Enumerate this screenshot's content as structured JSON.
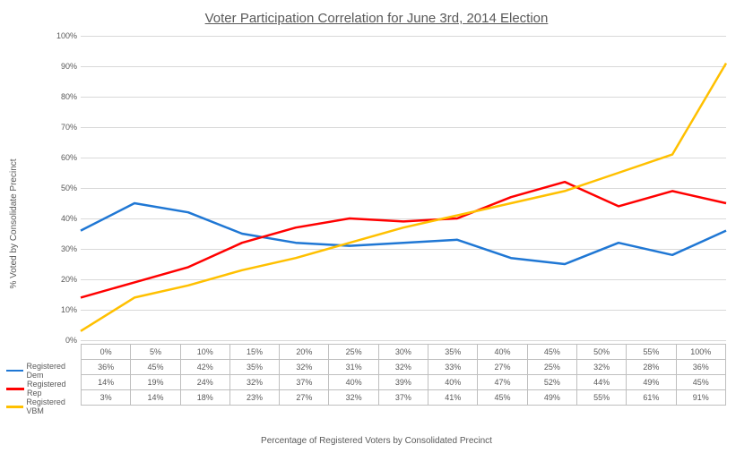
{
  "chart": {
    "type": "line",
    "title": "Voter Participation Correlation for June 3rd, 2014 Election",
    "title_fontsize": 15,
    "title_color": "#595959",
    "x_axis_label": "Percentage of Registered Voters by Consolidated Precinct",
    "y_axis_label": "% Voted by Consolidate Precinct",
    "label_fontsize": 10,
    "label_color": "#595959",
    "background_color": "#ffffff",
    "grid_color": "#d9d9d9",
    "ylim": [
      0,
      100
    ],
    "ytick_step": 10,
    "y_ticks": [
      "0%",
      "10%",
      "20%",
      "30%",
      "40%",
      "50%",
      "60%",
      "70%",
      "80%",
      "90%",
      "100%"
    ],
    "x_ticks": [
      "0%",
      "5%",
      "10%",
      "15%",
      "20%",
      "25%",
      "30%",
      "35%",
      "40%",
      "45%",
      "50%",
      "55%",
      "100%"
    ],
    "line_width": 2.5,
    "series": [
      {
        "name": "Registered Dem",
        "color": "#1f77d4",
        "values": [
          36,
          45,
          42,
          35,
          32,
          31,
          32,
          33,
          27,
          25,
          32,
          28,
          36
        ]
      },
      {
        "name": "Registered Rep",
        "color": "#ff0000",
        "values": [
          14,
          19,
          24,
          32,
          37,
          40,
          39,
          40,
          47,
          52,
          44,
          49,
          45
        ]
      },
      {
        "name": "Registered VBM",
        "color": "#ffc000",
        "values": [
          3,
          14,
          18,
          23,
          27,
          32,
          37,
          41,
          45,
          49,
          55,
          61,
          91
        ]
      }
    ],
    "table_header_row": [
      "0%",
      "5%",
      "10%",
      "15%",
      "20%",
      "25%",
      "30%",
      "35%",
      "40%",
      "45%",
      "50%",
      "55%",
      "100%"
    ],
    "table_rows": [
      [
        "36%",
        "45%",
        "42%",
        "35%",
        "32%",
        "31%",
        "32%",
        "33%",
        "27%",
        "25%",
        "32%",
        "28%",
        "36%"
      ],
      [
        "14%",
        "19%",
        "24%",
        "32%",
        "37%",
        "40%",
        "39%",
        "40%",
        "47%",
        "52%",
        "44%",
        "49%",
        "45%"
      ],
      [
        "3%",
        "14%",
        "18%",
        "23%",
        "27%",
        "32%",
        "37%",
        "41%",
        "45%",
        "49%",
        "55%",
        "61%",
        "91%"
      ]
    ]
  }
}
